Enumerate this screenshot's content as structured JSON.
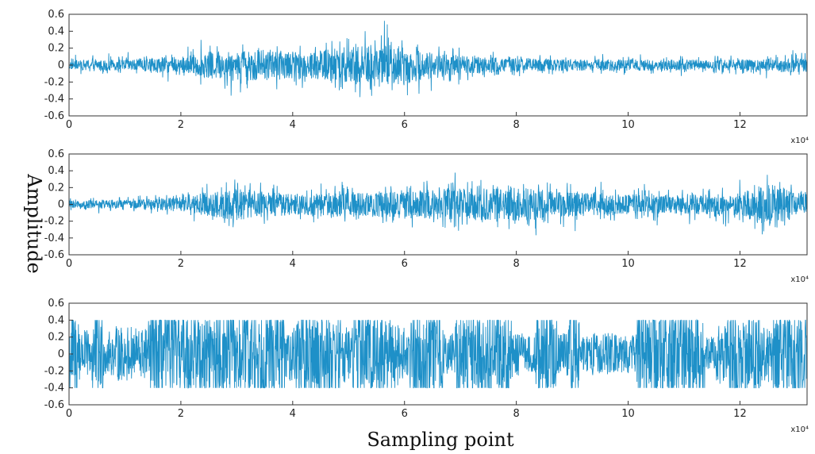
{
  "figure": {
    "xlabel": "Sampling point",
    "ylabel": "Amplitude"
  },
  "chart_data": [
    {
      "type": "line",
      "title": "",
      "xlabel": "",
      "ylabel": "",
      "x_multiplier": "x10⁴",
      "xlim": [
        0,
        13.2
      ],
      "ylim": [
        -0.6,
        0.6
      ],
      "xticks": [
        "0",
        "2",
        "4",
        "6",
        "8",
        "10",
        "12"
      ],
      "yticks": [
        "0.6",
        "0.4",
        "0.2",
        "0",
        "-0.2",
        "-0.4",
        "-0.6"
      ],
      "line_color": "#1e90c8",
      "series": [
        {
          "envelope_x": [
            0,
            1,
            2,
            2.5,
            3,
            3.5,
            4,
            4.5,
            5,
            5.5,
            6,
            6.5,
            7,
            8,
            9,
            10,
            11,
            12,
            13.2
          ],
          "envelope_amplitude": [
            0.12,
            0.15,
            0.22,
            0.35,
            0.4,
            0.42,
            0.35,
            0.4,
            0.5,
            0.58,
            0.48,
            0.35,
            0.25,
            0.18,
            0.15,
            0.15,
            0.15,
            0.15,
            0.2
          ]
        }
      ]
    },
    {
      "type": "line",
      "title": "",
      "xlabel": "",
      "ylabel": "",
      "x_multiplier": "x10⁴",
      "xlim": [
        0,
        13.2
      ],
      "ylim": [
        -0.6,
        0.6
      ],
      "xticks": [
        "0",
        "2",
        "4",
        "6",
        "8",
        "10",
        "12"
      ],
      "yticks": [
        "0.6",
        "0.4",
        "0.2",
        "0",
        "-0.2",
        "-0.4",
        "-0.6"
      ],
      "line_color": "#1e90c8",
      "series": [
        {
          "envelope_x": [
            0,
            1,
            2,
            2.5,
            3,
            3.5,
            4,
            5,
            6,
            7,
            7.5,
            8,
            8.5,
            9,
            10,
            11,
            12,
            12.4,
            13.2
          ],
          "envelope_amplitude": [
            0.1,
            0.12,
            0.2,
            0.35,
            0.42,
            0.35,
            0.28,
            0.3,
            0.38,
            0.42,
            0.42,
            0.45,
            0.38,
            0.32,
            0.28,
            0.25,
            0.3,
            0.55,
            0.3
          ]
        }
      ]
    },
    {
      "type": "line",
      "title": "",
      "xlabel": "",
      "ylabel": "",
      "x_multiplier": "x10⁴",
      "xlim": [
        0,
        13.2
      ],
      "ylim": [
        -0.6,
        0.6
      ],
      "xticks": [
        "0",
        "2",
        "4",
        "6",
        "8",
        "10",
        "12"
      ],
      "yticks": [
        "0.6",
        "0.4",
        "0.2",
        "0",
        "-0.2",
        "-0.4",
        "-0.6"
      ],
      "line_color": "#1e90c8",
      "series": [
        {
          "clip_level": 0.4,
          "envelope_x": [
            0,
            13.2
          ],
          "envelope_amplitude": [
            0.4,
            0.4
          ]
        }
      ]
    }
  ]
}
